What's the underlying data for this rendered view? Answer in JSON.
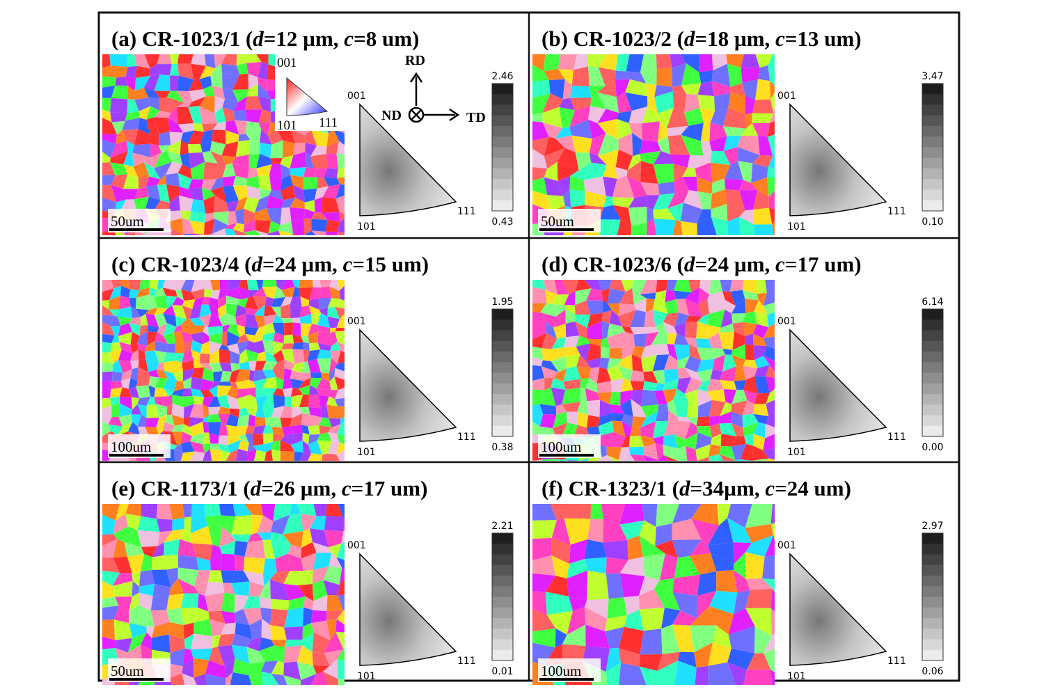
{
  "panels": [
    {
      "title": [
        "(a)  CR-1023/1 (",
        "d",
        "=12 µm, ",
        "c",
        "=8 um)"
      ],
      "scale_bar": "50um",
      "ipf_labels": [
        "001",
        "101",
        "111"
      ],
      "colorbar_max": "2.46",
      "colorbar_min": "0.43"
    },
    {
      "title": [
        "(b)  CR-1023/2 (",
        "d",
        "=18 µm, ",
        "c",
        "=13 um)"
      ],
      "scale_bar": "50um",
      "ipf_labels": [
        "001",
        "101",
        "111"
      ],
      "colorbar_max": "3.47",
      "colorbar_min": "0.10"
    },
    {
      "title": [
        "(c)  CR-1023/4 (",
        "d",
        "=24 µm, ",
        "c",
        "=15 um)"
      ],
      "scale_bar": "100um",
      "ipf_labels": [
        "001",
        "101",
        "111"
      ],
      "colorbar_max": "1.95",
      "colorbar_min": "0.38"
    },
    {
      "title": [
        "(d)  CR-1023/6 (",
        "d",
        "=24 µm, ",
        "c",
        "=17 um)"
      ],
      "scale_bar": "100um",
      "ipf_labels": [
        "001",
        "101",
        "111"
      ],
      "colorbar_max": "6.14",
      "colorbar_min": "0.00"
    },
    {
      "title": [
        "(e)  CR-1173/1 (",
        "d",
        "=26 µm, ",
        "c",
        "=17 um)"
      ],
      "scale_bar": "50um",
      "ipf_labels": [
        "001",
        "101",
        "111"
      ],
      "colorbar_max": "2.21",
      "colorbar_min": "0.01"
    },
    {
      "title": [
        "(f)  CR-1323/1 (",
        "d",
        "=34µm, ",
        "c",
        "=24 um)"
      ],
      "scale_bar": "100um",
      "ipf_labels": [
        "001",
        "101",
        "111"
      ],
      "colorbar_max": "2.97",
      "colorbar_min": "0.06"
    }
  ],
  "legend": {
    "key_labels": [
      "001",
      "101",
      "111"
    ],
    "axes": [
      "RD",
      "ND",
      "TD"
    ]
  }
}
